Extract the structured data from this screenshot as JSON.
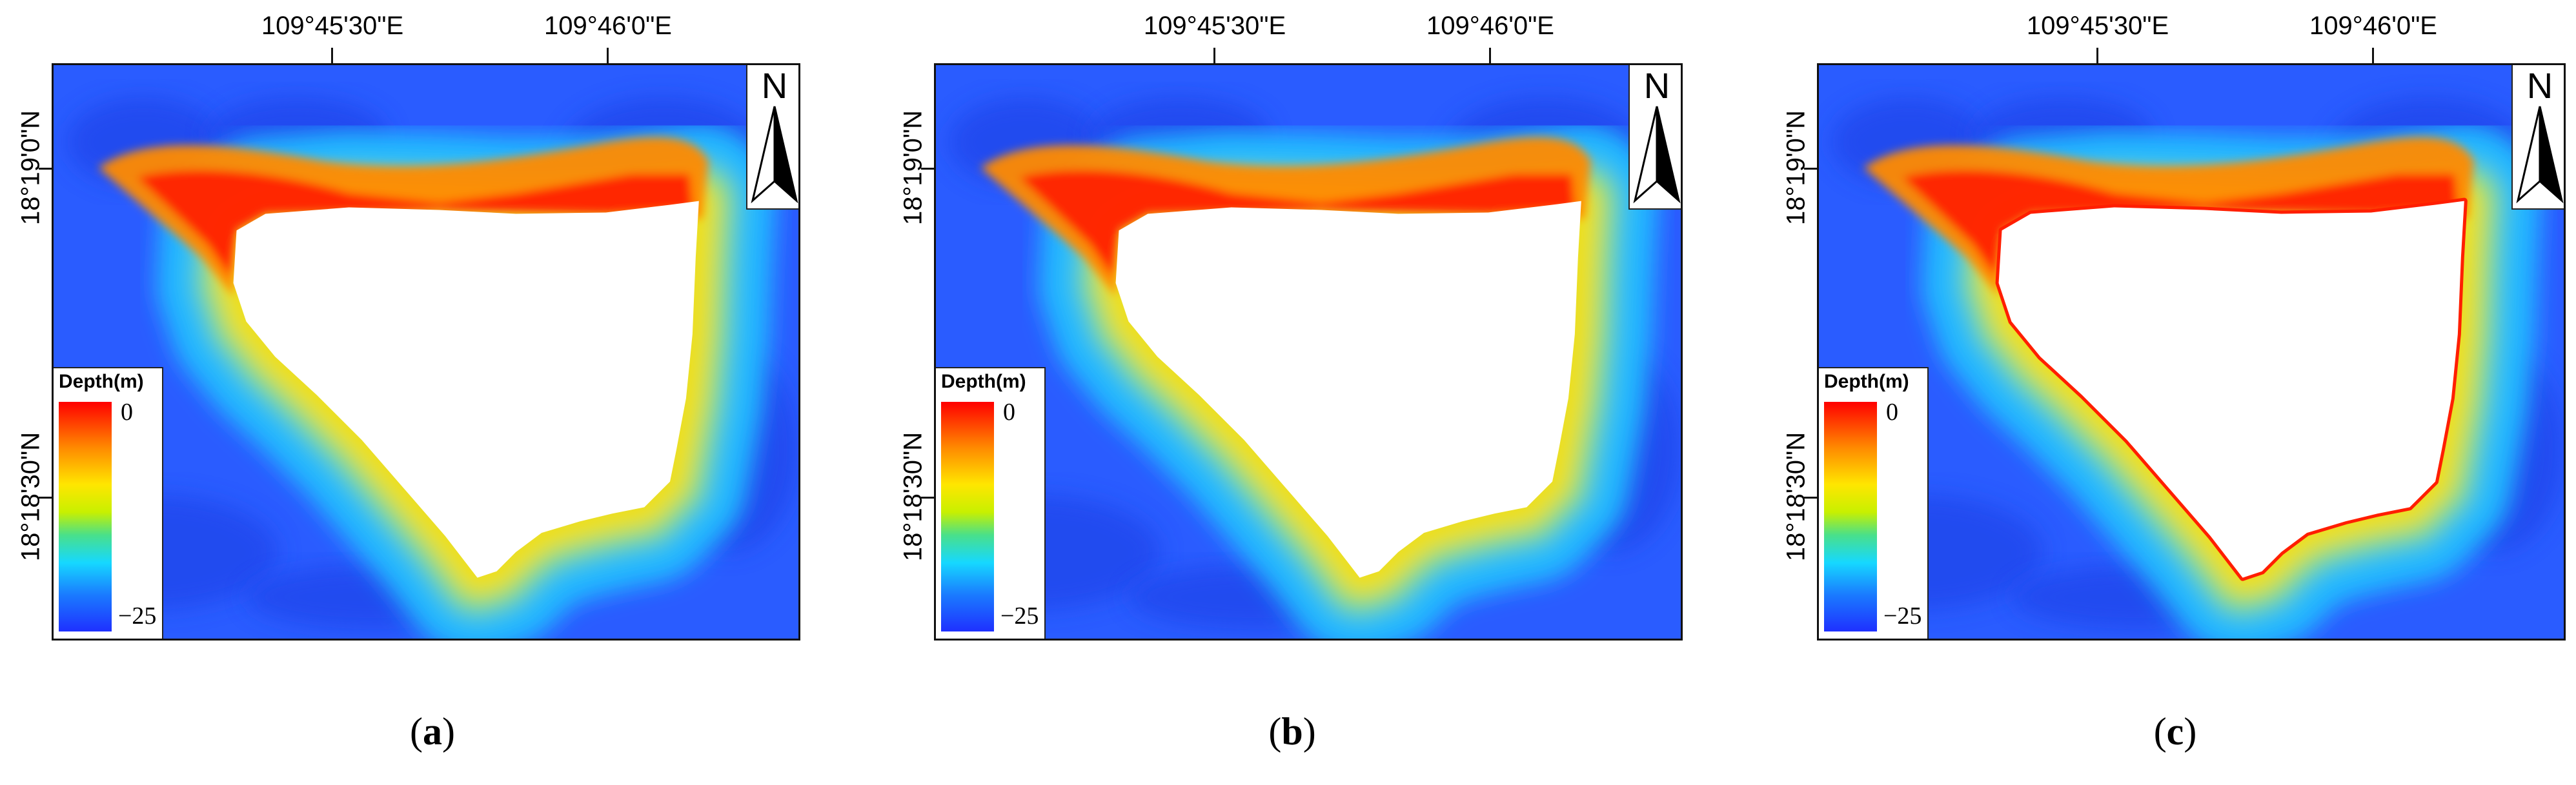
{
  "figure": {
    "panels": [
      {
        "id": "a",
        "caption_open": "(",
        "caption_letter": "a",
        "caption_close": ")",
        "lon_labels": [
          "109°45'30\"E",
          "109°46'0\"E"
        ],
        "lat_labels": [
          "18°19'0\"N",
          "18°18'30\"N"
        ],
        "north_label": "N",
        "legend_title": "Depth(m)",
        "legend_max": "0",
        "legend_min": "−25",
        "island_edge": "smooth-band"
      },
      {
        "id": "b",
        "caption_open": "(",
        "caption_letter": "b",
        "caption_close": ")",
        "lon_labels": [
          "109°45'30\"E",
          "109°46'0\"E"
        ],
        "lat_labels": [
          "18°19'0\"N",
          "18°18'30\"N"
        ],
        "north_label": "N",
        "legend_title": "Depth(m)",
        "legend_max": "0",
        "legend_min": "−25",
        "island_edge": "smooth-band"
      },
      {
        "id": "c",
        "caption_open": "(",
        "caption_letter": "c",
        "caption_close": ")",
        "lon_labels": [
          "109°45'30\"E",
          "109°46'0\"E"
        ],
        "lat_labels": [
          "18°19'0\"N",
          "18°18'30\"N"
        ],
        "north_label": "N",
        "legend_title": "Depth(m)",
        "legend_max": "0",
        "legend_min": "−25",
        "island_edge": "sharp-red-rim"
      }
    ],
    "colors": {
      "deep_water": "#2a5cff",
      "mid_water": "#22b8ff",
      "shallow_green": "#7fe06a",
      "shallow_yellow": "#ffe000",
      "shallow_orange": "#ff8a00",
      "reef_red": "#ff1e00",
      "land": "#ffffff"
    },
    "legend_range_m": [
      0,
      -25
    ]
  }
}
